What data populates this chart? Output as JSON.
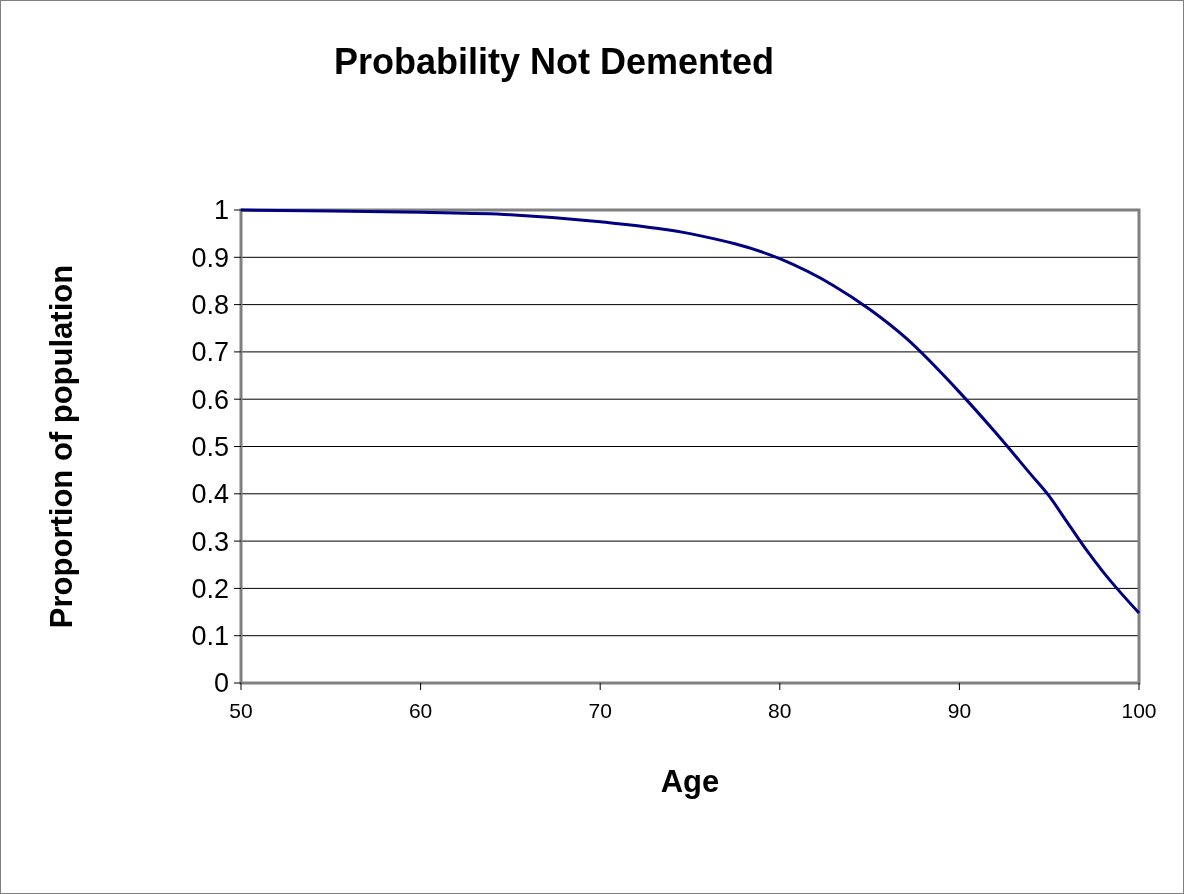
{
  "chart_data": {
    "type": "line",
    "title": "Probability Not Demented",
    "xlabel": "Age",
    "ylabel": "Proportion of population",
    "x": [
      50,
      55,
      60,
      65,
      70,
      75,
      80,
      83,
      85,
      87,
      90,
      92,
      94,
      95,
      96,
      97,
      98,
      99,
      100
    ],
    "series": [
      {
        "color": "#000080",
        "values": [
          1.0,
          0.998,
          0.995,
          0.99,
          0.975,
          0.95,
          0.897,
          0.84,
          0.79,
          0.73,
          0.615,
          0.53,
          0.44,
          0.395,
          0.34,
          0.285,
          0.235,
          0.19,
          0.148
        ]
      }
    ],
    "xlim": [
      50,
      100
    ],
    "xticks": [
      50,
      60,
      70,
      80,
      90,
      100
    ],
    "ylim": [
      0,
      1
    ],
    "yticks": [
      0,
      0.1,
      0.2,
      0.3,
      0.4,
      0.5,
      0.6,
      0.7,
      0.8,
      0.9,
      1
    ],
    "grid": "y",
    "marker": "none",
    "line_style": "solid"
  }
}
